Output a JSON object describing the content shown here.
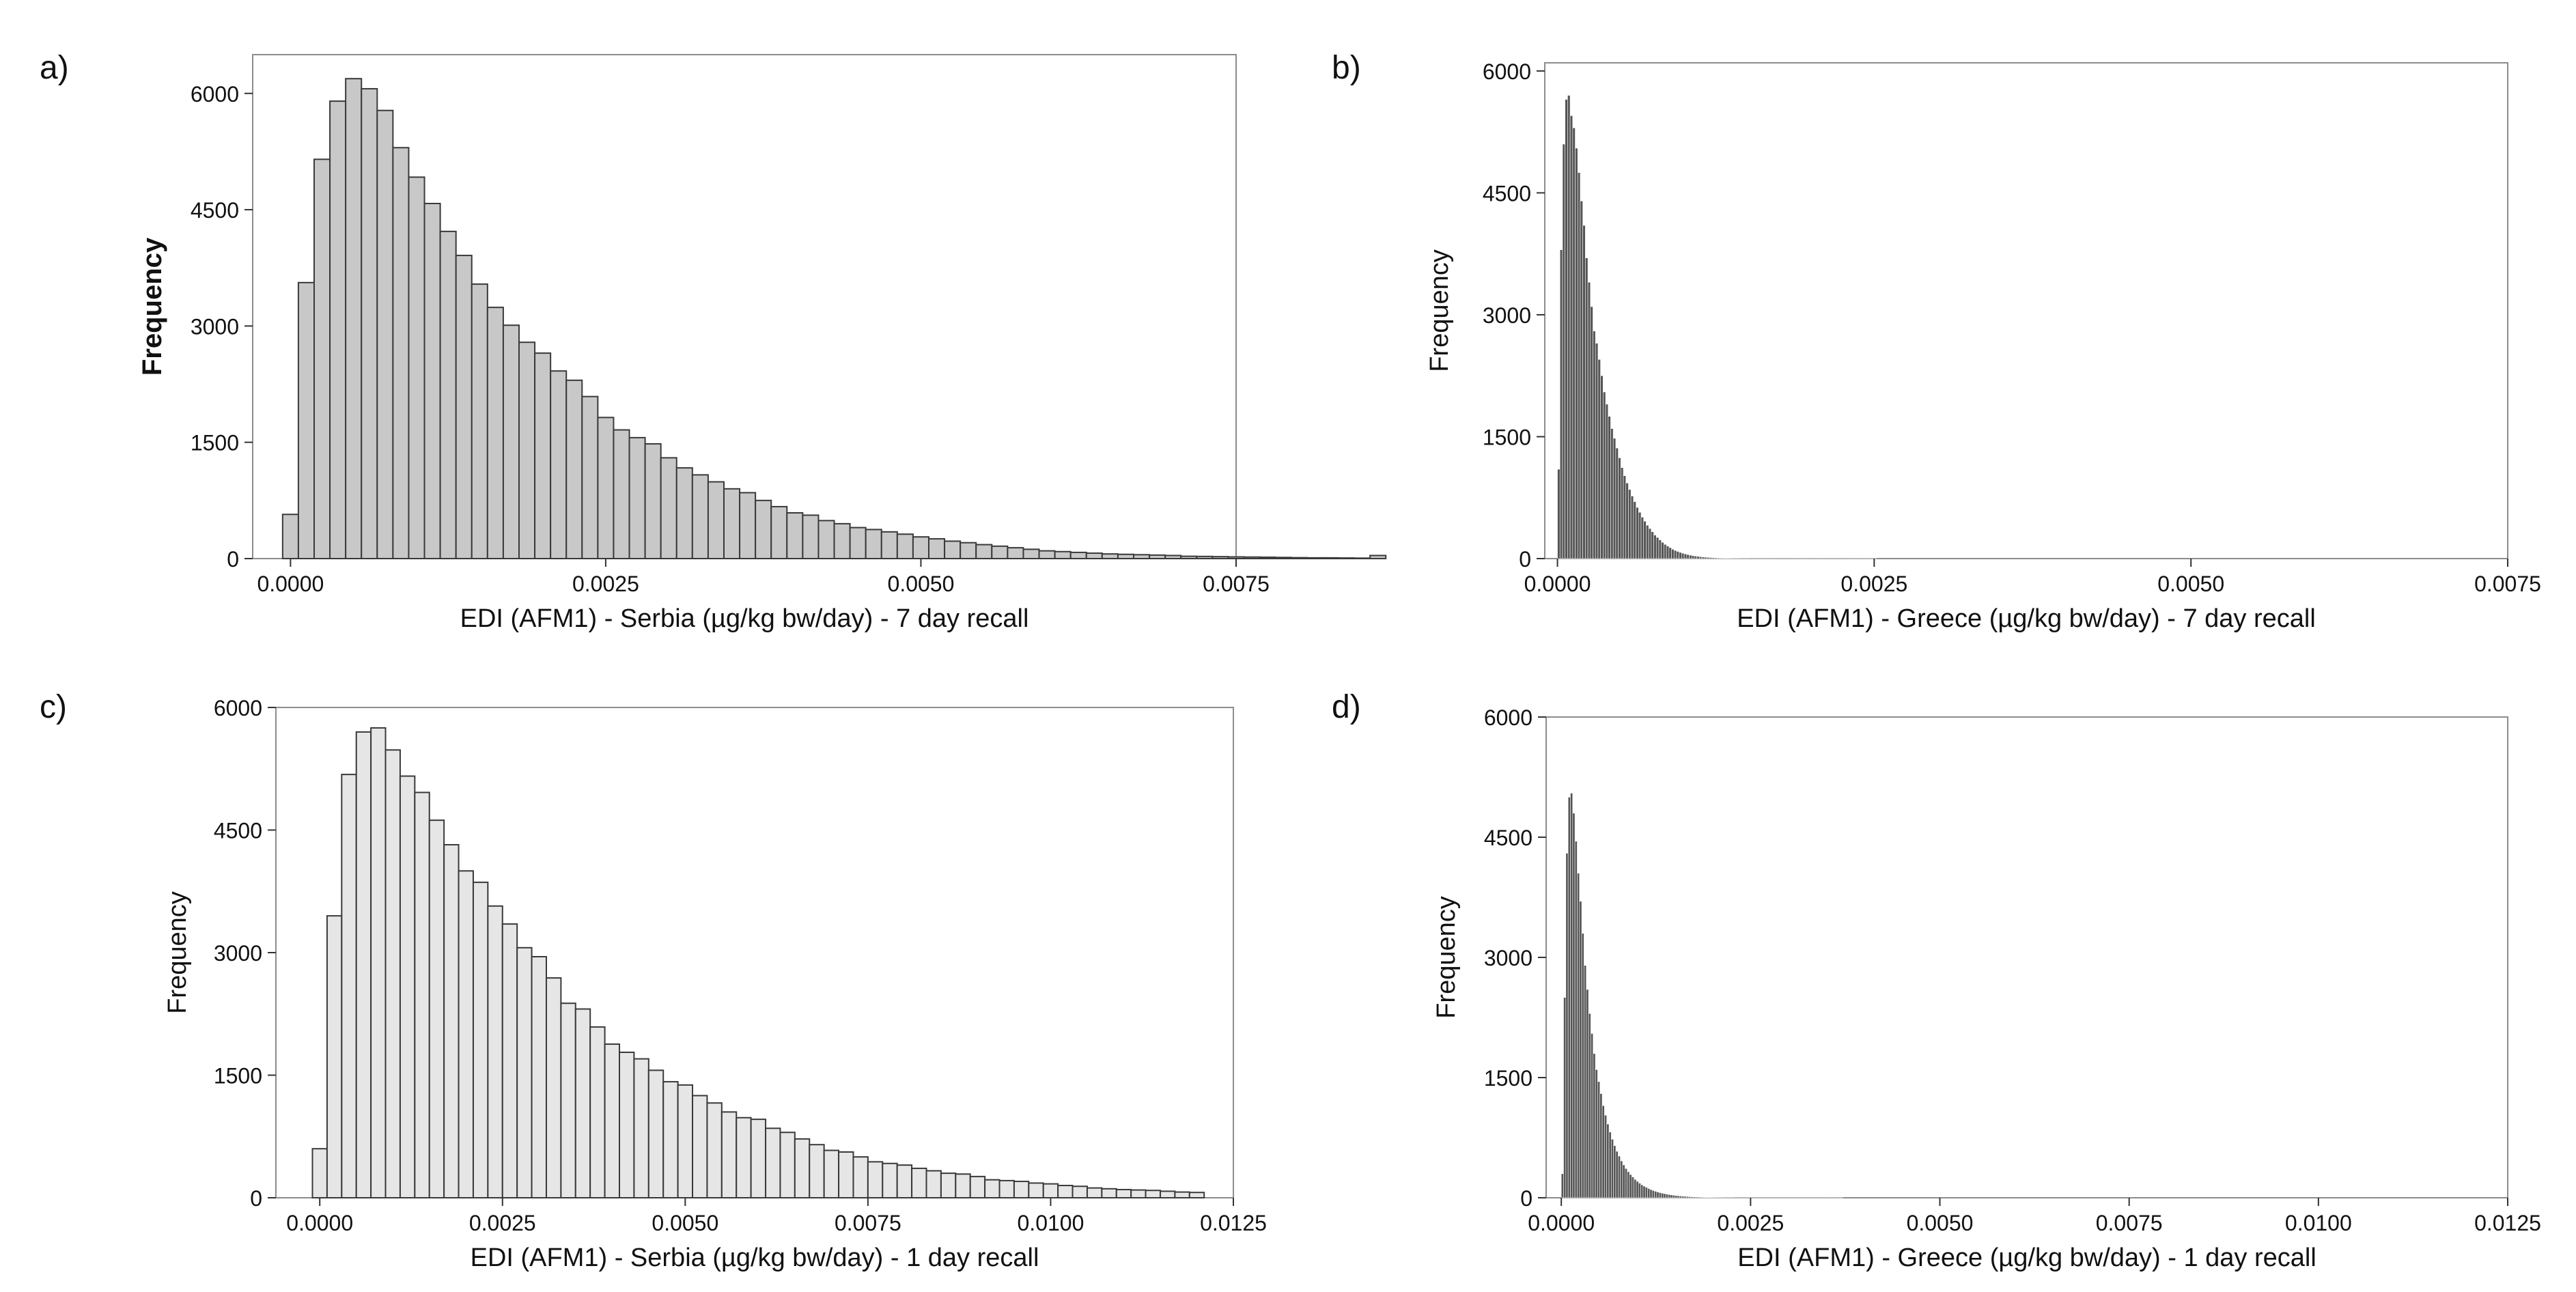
{
  "chart_data": [
    {
      "panel": "a)",
      "type": "bar",
      "xlabel": "EDI (AFM1) - Serbia (µg/kg bw/day) - 7 day recall",
      "ylabel": "Frequency",
      "xlim": [
        -0.0003,
        0.0075
      ],
      "ylim": [
        0,
        6500
      ],
      "xticks": [
        0.0,
        0.0025,
        0.005,
        0.0075
      ],
      "xtick_labels": [
        "0.0000",
        "0.0025",
        "0.0050",
        "0.0075"
      ],
      "yticks": [
        0,
        1500,
        3000,
        4500,
        6000
      ],
      "ytick_labels": [
        "0",
        "1500",
        "3000",
        "4500",
        "6000"
      ],
      "bar_color": "#c8c8c8",
      "bin_start": -6.25e-05,
      "bin_width": 0.000125,
      "values": [
        570,
        3560,
        5150,
        5900,
        6190,
        6060,
        5780,
        5300,
        4920,
        4580,
        4220,
        3910,
        3540,
        3240,
        3010,
        2790,
        2650,
        2420,
        2300,
        2090,
        1820,
        1660,
        1560,
        1480,
        1300,
        1170,
        1080,
        990,
        900,
        850,
        750,
        670,
        590,
        560,
        490,
        450,
        400,
        375,
        345,
        315,
        280,
        255,
        225,
        205,
        180,
        160,
        140,
        120,
        100,
        90,
        80,
        70,
        60,
        55,
        50,
        45,
        40,
        30,
        28,
        25,
        22,
        20,
        18,
        15,
        12,
        10,
        10,
        8,
        6,
        40
      ]
    },
    {
      "panel": "b)",
      "type": "bar",
      "xlabel": "EDI (AFM1) - Greece (µg/kg bw/day) - 7 day recall",
      "ylabel": "Frequency",
      "xlim": [
        -0.0001,
        0.0075
      ],
      "ylim": [
        0,
        6100
      ],
      "xticks": [
        0.0,
        0.0025,
        0.005,
        0.0075
      ],
      "xtick_labels": [
        "0.0000",
        "0.0025",
        "0.0050",
        "0.0075"
      ],
      "yticks": [
        0,
        1500,
        3000,
        4500,
        6000
      ],
      "ytick_labels": [
        "0",
        "1500",
        "3000",
        "4500",
        "6000"
      ],
      "bar_color": "#555555",
      "bin_start": 0.0,
      "bin_width": 2e-05,
      "values": [
        1100,
        3800,
        5100,
        5650,
        5700,
        5450,
        5300,
        5050,
        4750,
        4400,
        4100,
        3700,
        3400,
        3100,
        2800,
        2650,
        2450,
        2250,
        2050,
        1900,
        1750,
        1600,
        1480,
        1360,
        1240,
        1120,
        1020,
        930,
        850,
        770,
        700,
        630,
        570,
        510,
        460,
        410,
        370,
        330,
        290,
        260,
        230,
        200,
        175,
        155,
        135,
        115,
        100,
        88,
        76,
        66,
        57,
        49,
        42,
        36,
        31,
        27,
        23,
        20,
        17,
        15,
        13,
        11,
        9,
        8,
        7,
        6,
        5,
        5,
        4,
        3,
        3,
        3,
        2,
        2,
        2,
        2,
        1,
        1,
        1,
        1,
        1,
        1,
        1,
        1,
        1,
        1,
        1,
        1,
        1,
        1,
        1,
        1,
        1,
        1,
        1,
        1,
        1,
        1,
        1,
        1,
        1,
        1,
        1,
        1,
        1,
        1,
        1,
        1,
        1,
        1,
        1,
        1,
        1,
        1,
        1,
        1,
        1,
        1,
        1,
        1,
        1,
        1,
        1,
        1,
        1,
        1
      ]
    },
    {
      "panel": "c)",
      "type": "bar",
      "xlabel": "EDI (AFM1) - Serbia (µg/kg bw/day) - 1 day recall",
      "ylabel": "Frequency",
      "xlim": [
        -0.0006,
        0.0125
      ],
      "ylim": [
        0,
        6000
      ],
      "xticks": [
        0.0,
        0.0025,
        0.005,
        0.0075,
        0.01,
        0.0125
      ],
      "xtick_labels": [
        "0.0000",
        "0.0025",
        "0.0050",
        "0.0075",
        "0.0100",
        "0.0125"
      ],
      "yticks": [
        0,
        1500,
        3000,
        4500,
        6000
      ],
      "ytick_labels": [
        "0",
        "1500",
        "3000",
        "4500",
        "6000"
      ],
      "bar_color": "#e6e6e6",
      "bin_start": -0.0001,
      "bin_width": 0.0002,
      "values": [
        600,
        3450,
        5180,
        5700,
        5750,
        5480,
        5160,
        4960,
        4620,
        4320,
        4000,
        3860,
        3570,
        3350,
        3060,
        2950,
        2690,
        2380,
        2310,
        2090,
        1880,
        1780,
        1700,
        1560,
        1420,
        1380,
        1250,
        1160,
        1050,
        980,
        960,
        850,
        800,
        720,
        650,
        580,
        560,
        500,
        440,
        420,
        400,
        360,
        330,
        300,
        290,
        260,
        220,
        210,
        200,
        180,
        170,
        150,
        140,
        120,
        110,
        100,
        95,
        90,
        80,
        70,
        65
      ]
    },
    {
      "panel": "d)",
      "type": "bar",
      "xlabel": "EDI (AFM1) - Greece (µg/kg bw/day) - 1 day recall",
      "ylabel": "Frequency",
      "xlim": [
        -0.0002,
        0.0125
      ],
      "ylim": [
        0,
        6000
      ],
      "xticks": [
        0.0,
        0.0025,
        0.005,
        0.0075,
        0.01,
        0.0125
      ],
      "xtick_labels": [
        "0.0000",
        "0.0025",
        "0.0050",
        "0.0075",
        "0.0100",
        "0.0125"
      ],
      "yticks": [
        0,
        1500,
        3000,
        4500,
        6000
      ],
      "ytick_labels": [
        "0",
        "1500",
        "3000",
        "4500",
        "6000"
      ],
      "bar_color": "#555555",
      "bin_start": 0.0,
      "bin_width": 3e-05,
      "values": [
        300,
        2500,
        4300,
        5000,
        5050,
        4800,
        4450,
        4050,
        3700,
        3300,
        2900,
        2600,
        2300,
        2050,
        1800,
        1600,
        1450,
        1300,
        1150,
        1030,
        920,
        820,
        730,
        650,
        580,
        520,
        460,
        410,
        365,
        325,
        290,
        260,
        230,
        205,
        182,
        162,
        145,
        130,
        115,
        102,
        91,
        81,
        72,
        64,
        57,
        51,
        45,
        40,
        36,
        32,
        28,
        25,
        22,
        20,
        18,
        16,
        14,
        12,
        11,
        10,
        9,
        8,
        7,
        6,
        5,
        5,
        4,
        4,
        3,
        3,
        3,
        2,
        2,
        2,
        2,
        2,
        1,
        1,
        1,
        1,
        1,
        1,
        1,
        1,
        1,
        1,
        1,
        1,
        1,
        1,
        1,
        1,
        1,
        1,
        1,
        1,
        1,
        1,
        1,
        1,
        1,
        1,
        1,
        1,
        1,
        1,
        1,
        1,
        1,
        1,
        1,
        1,
        1,
        1,
        1,
        1,
        1,
        1,
        1,
        1,
        1,
        1,
        1,
        1
      ]
    }
  ]
}
